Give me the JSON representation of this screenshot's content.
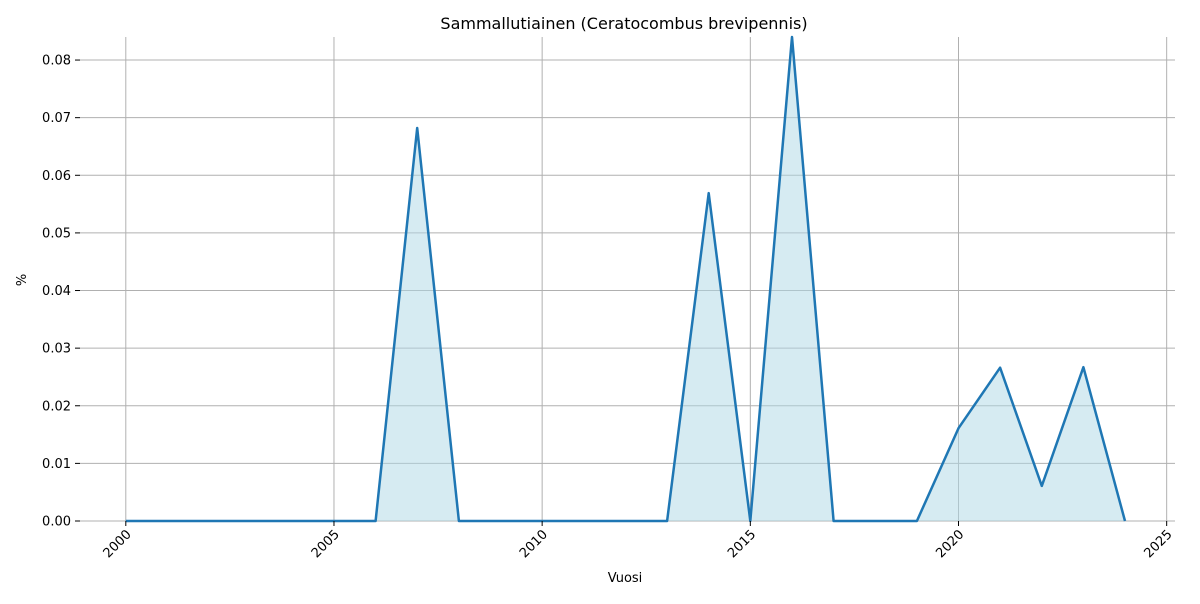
{
  "chart_data": {
    "type": "area",
    "title": "Sammallutiainen (Ceratocombus brevipennis)",
    "xlabel": "Vuosi",
    "ylabel": "%",
    "xlim": [
      1998.9,
      2025.2
    ],
    "ylim": [
      0,
      0.084
    ],
    "grid": true,
    "x_ticks": [
      2000,
      2005,
      2010,
      2015,
      2020,
      2025
    ],
    "y_ticks": [
      "0.00",
      "0.01",
      "0.02",
      "0.03",
      "0.04",
      "0.05",
      "0.06",
      "0.07",
      "0.08"
    ],
    "line_color": "#1f77b4",
    "fill_color": "#add8e6",
    "x": [
      2000,
      2001,
      2002,
      2003,
      2004,
      2005,
      2006,
      2007,
      2008,
      2009,
      2010,
      2011,
      2012,
      2013,
      2014,
      2015,
      2016,
      2017,
      2018,
      2019,
      2020,
      2021,
      2022,
      2023,
      2024
    ],
    "values": [
      0,
      0,
      0,
      0,
      0,
      0,
      0,
      0.0682,
      0,
      0,
      0,
      0,
      0,
      0,
      0.0569,
      0,
      0.084,
      0,
      0,
      0,
      0.0161,
      0.0266,
      0.0061,
      0.0267,
      0
    ]
  }
}
